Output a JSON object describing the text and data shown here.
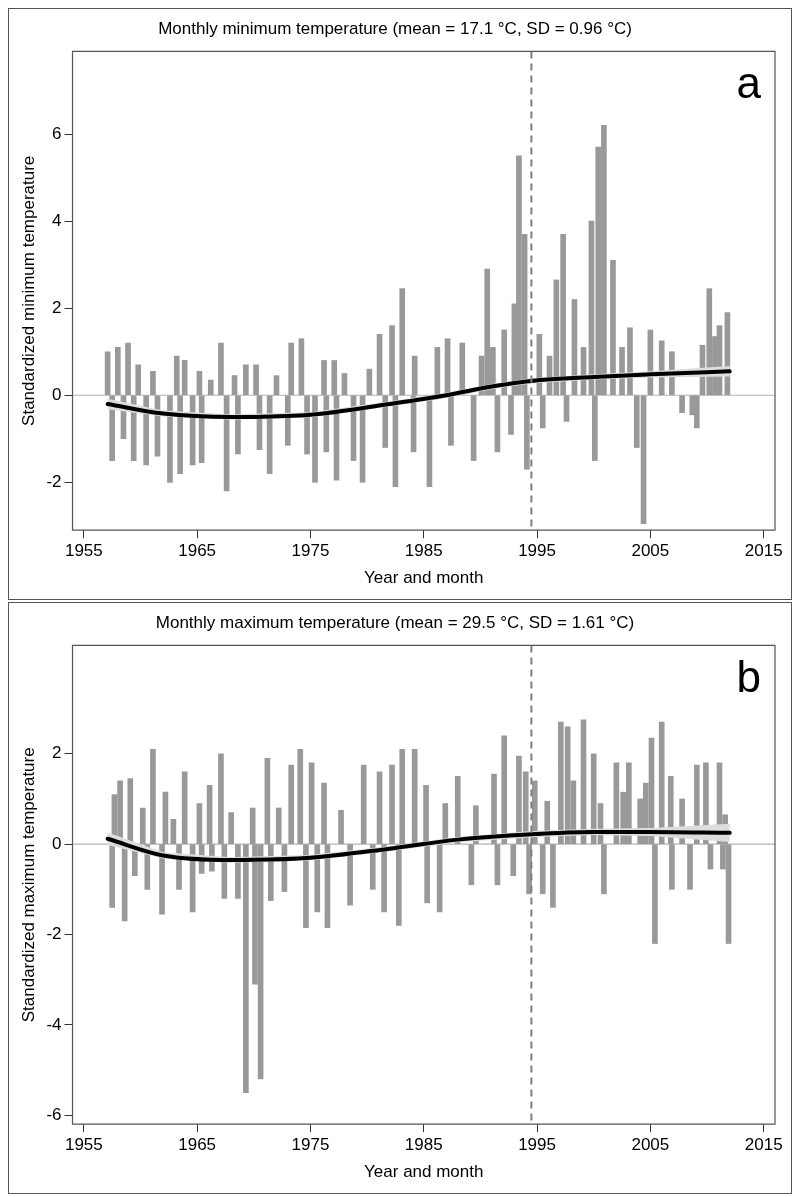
{
  "chart_data": [
    {
      "type": "bar",
      "title": "Monthly minimum temperature (mean = 17.1 °C, SD = 0.96 °C)",
      "xlabel": "Year and month",
      "ylabel": "Standardized minimum temperature",
      "annotations": [
        "a"
      ],
      "xlim": [
        1954,
        2016
      ],
      "xticks": [
        1955,
        1965,
        1975,
        1985,
        1995,
        2005,
        2015
      ],
      "ylim": [
        -3.1,
        7.9
      ],
      "yticks": [
        -2,
        0,
        2,
        4,
        6
      ],
      "grid": false,
      "legend": false,
      "ref_lines": [
        {
          "axis": "y",
          "value": 0,
          "color": "#b4b4b4",
          "line_style": "solid"
        },
        {
          "axis": "x",
          "value": 1994.5,
          "color": "#7f7f7f",
          "line_style": "dashed"
        }
      ],
      "series": [
        {
          "color": "#999999",
          "x": [
            1957.1,
            1957.5,
            1958.0,
            1958.5,
            1958.9,
            1959.4,
            1959.8,
            1960.5,
            1961.1,
            1961.5,
            1962.6,
            1963.2,
            1963.5,
            1963.9,
            1964.6,
            1965.2,
            1965.4,
            1966.2,
            1967.1,
            1967.6,
            1968.3,
            1968.6,
            1969.3,
            1970.2,
            1970.5,
            1971.4,
            1972.0,
            1973.0,
            1973.3,
            1974.2,
            1974.7,
            1975.4,
            1976.2,
            1976.4,
            1977.1,
            1977.3,
            1978.0,
            1978.8,
            1979.6,
            1980.2,
            1981.1,
            1981.6,
            1982.2,
            1982.5,
            1983.1,
            1984.1,
            1984.2,
            1985.5,
            1986.2,
            1987.1,
            1987.4,
            1988.4,
            1989.4,
            1990.1,
            1990.6,
            1991.1,
            1991.5,
            1992.1,
            1992.7,
            1993.0,
            1993.4,
            1993.9,
            1994.1,
            1995.2,
            1995.5,
            1996.1,
            1996.7,
            1997.3,
            1997.6,
            1998.3,
            1999.1,
            1999.8,
            2000.1,
            2000.4,
            2000.9,
            2001.7,
            2002.5,
            2003.2,
            2003.8,
            2004.4,
            2005.0,
            2006.0,
            2006.9,
            2007.8,
            2008.7,
            2009.1,
            2009.6,
            2010.2,
            2010.7,
            2011.1,
            2011.8
          ],
          "values": [
            1.0,
            -1.5,
            1.1,
            -1.0,
            1.2,
            -1.5,
            0.7,
            -1.6,
            0.55,
            -1.4,
            -2.0,
            0.9,
            -1.8,
            0.8,
            -1.6,
            0.55,
            -1.55,
            0.35,
            1.2,
            -2.2,
            0.45,
            -1.35,
            0.7,
            0.7,
            -1.25,
            -1.8,
            0.45,
            -1.15,
            1.2,
            1.3,
            -1.35,
            -2.0,
            0.8,
            -1.3,
            0.8,
            -1.95,
            0.5,
            -1.5,
            -2.0,
            0.6,
            1.4,
            -1.2,
            1.6,
            -2.1,
            2.45,
            -1.3,
            0.9,
            -2.1,
            1.1,
            1.3,
            -1.15,
            1.2,
            -1.5,
            0.9,
            2.9,
            1.1,
            -1.3,
            1.5,
            -0.9,
            2.1,
            5.5,
            3.7,
            -1.7,
            1.4,
            -0.75,
            0.9,
            2.65,
            3.7,
            -0.6,
            2.2,
            1.1,
            4.0,
            -1.5,
            5.7,
            6.2,
            3.1,
            1.1,
            1.55,
            -1.2,
            -2.95,
            1.5,
            1.25,
            1.0,
            -0.4,
            -0.45,
            -0.75,
            1.15,
            2.45,
            1.35,
            1.6,
            1.9
          ]
        },
        {
          "type": "line",
          "color": "#000000",
          "x": [
            1957.1,
            1962,
            1968,
            1975,
            1982,
            1987,
            1991,
            1994.5,
            2000,
            2005,
            2012
          ],
          "values": [
            -0.2,
            -0.42,
            -0.5,
            -0.45,
            -0.2,
            0.0,
            0.2,
            0.33,
            0.42,
            0.48,
            0.55
          ],
          "lower": [
            -0.32,
            -0.49,
            -0.56,
            -0.51,
            -0.26,
            -0.06,
            0.14,
            0.27,
            0.36,
            0.41,
            0.43
          ],
          "upper": [
            -0.08,
            -0.35,
            -0.44,
            -0.39,
            -0.14,
            0.06,
            0.26,
            0.39,
            0.48,
            0.55,
            0.67
          ]
        }
      ]
    },
    {
      "type": "bar",
      "title": "Monthly maximum temperature (mean = 29.5 °C, SD = 1.61 °C)",
      "xlabel": "Year and month",
      "ylabel": "Standardized maximum temperature",
      "annotations": [
        "b"
      ],
      "xlim": [
        1954,
        2016
      ],
      "xticks": [
        1955,
        1965,
        1975,
        1985,
        1995,
        2005,
        2015
      ],
      "ylim": [
        -6.2,
        4.4
      ],
      "yticks": [
        -6,
        -4,
        -2,
        0,
        2
      ],
      "grid": false,
      "legend": false,
      "ref_lines": [
        {
          "axis": "y",
          "value": 0,
          "color": "#b4b4b4",
          "line_style": "solid"
        },
        {
          "axis": "x",
          "value": 1994.5,
          "color": "#7f7f7f",
          "line_style": "dashed"
        }
      ],
      "series": [
        {
          "color": "#999999",
          "x": [
            1957.5,
            1957.7,
            1958.2,
            1958.6,
            1959.1,
            1959.5,
            1960.2,
            1960.6,
            1961.1,
            1961.9,
            1962.2,
            1962.9,
            1963.4,
            1963.9,
            1964.6,
            1965.2,
            1965.4,
            1966.1,
            1966.3,
            1967.1,
            1967.4,
            1968.0,
            1968.6,
            1969.3,
            1969.9,
            1970.1,
            1970.6,
            1971.2,
            1971.5,
            1972.2,
            1972.7,
            1973.3,
            1974.1,
            1974.6,
            1975.1,
            1975.6,
            1976.2,
            1976.5,
            1977.7,
            1978.5,
            1979.7,
            1980.5,
            1981.1,
            1981.5,
            1982.2,
            1982.8,
            1983.1,
            1984.2,
            1985.2,
            1985.3,
            1986.4,
            1986.9,
            1988.0,
            1989.2,
            1989.6,
            1991.2,
            1991.5,
            1992.1,
            1992.9,
            1993.4,
            1994.0,
            1994.3,
            1994.8,
            1995.5,
            1995.9,
            1996.4,
            1997.1,
            1997.7,
            1998.2,
            1999.1,
            2000.0,
            2000.6,
            2000.9,
            2002.0,
            2002.6,
            2003.1,
            2004.1,
            2004.6,
            2005.1,
            2005.4,
            2006.0,
            2006.8,
            2006.9,
            2007.8,
            2008.5,
            2009.1,
            2009.9,
            2010.3,
            2011.1,
            2011.4,
            2011.6,
            2011.9
          ],
          "values": [
            -1.4,
            1.1,
            1.4,
            -1.7,
            1.45,
            -0.7,
            0.8,
            -1.0,
            2.1,
            -1.55,
            1.15,
            0.55,
            -1.0,
            1.6,
            -1.5,
            0.9,
            -0.65,
            1.3,
            -0.6,
            2.0,
            -1.2,
            0.7,
            -1.2,
            -5.5,
            0.8,
            -3.1,
            -5.2,
            1.9,
            -1.25,
            0.8,
            -1.05,
            1.75,
            2.1,
            -1.85,
            1.8,
            -1.5,
            1.35,
            -1.85,
            0.75,
            -1.35,
            1.75,
            -1.0,
            1.6,
            -1.5,
            1.75,
            -1.8,
            2.1,
            2.1,
            1.3,
            -1.3,
            -1.5,
            0.9,
            1.5,
            -0.9,
            0.85,
            1.55,
            -0.9,
            2.4,
            -0.7,
            1.95,
            1.6,
            -1.1,
            1.4,
            -1.1,
            0.95,
            -1.4,
            2.7,
            2.6,
            1.4,
            2.75,
            2.0,
            0.9,
            -1.1,
            1.8,
            1.15,
            1.8,
            1.0,
            1.35,
            2.35,
            -2.2,
            2.7,
            1.5,
            -1.0,
            1.0,
            -1.0,
            1.75,
            1.8,
            -0.55,
            1.8,
            -0.55,
            0.65,
            -2.2
          ]
        },
        {
          "type": "line",
          "color": "#000000",
          "x": [
            1957.1,
            1962,
            1968,
            1975,
            1982,
            1988,
            1994.5,
            2000,
            2005,
            2012
          ],
          "values": [
            0.12,
            -0.25,
            -0.35,
            -0.3,
            -0.1,
            0.1,
            0.22,
            0.27,
            0.27,
            0.25
          ],
          "lower": [
            -0.02,
            -0.32,
            -0.41,
            -0.36,
            -0.16,
            0.04,
            0.15,
            0.2,
            0.18,
            0.05
          ],
          "upper": [
            0.26,
            -0.18,
            -0.29,
            -0.24,
            -0.04,
            0.16,
            0.29,
            0.34,
            0.36,
            0.45
          ]
        }
      ]
    }
  ]
}
